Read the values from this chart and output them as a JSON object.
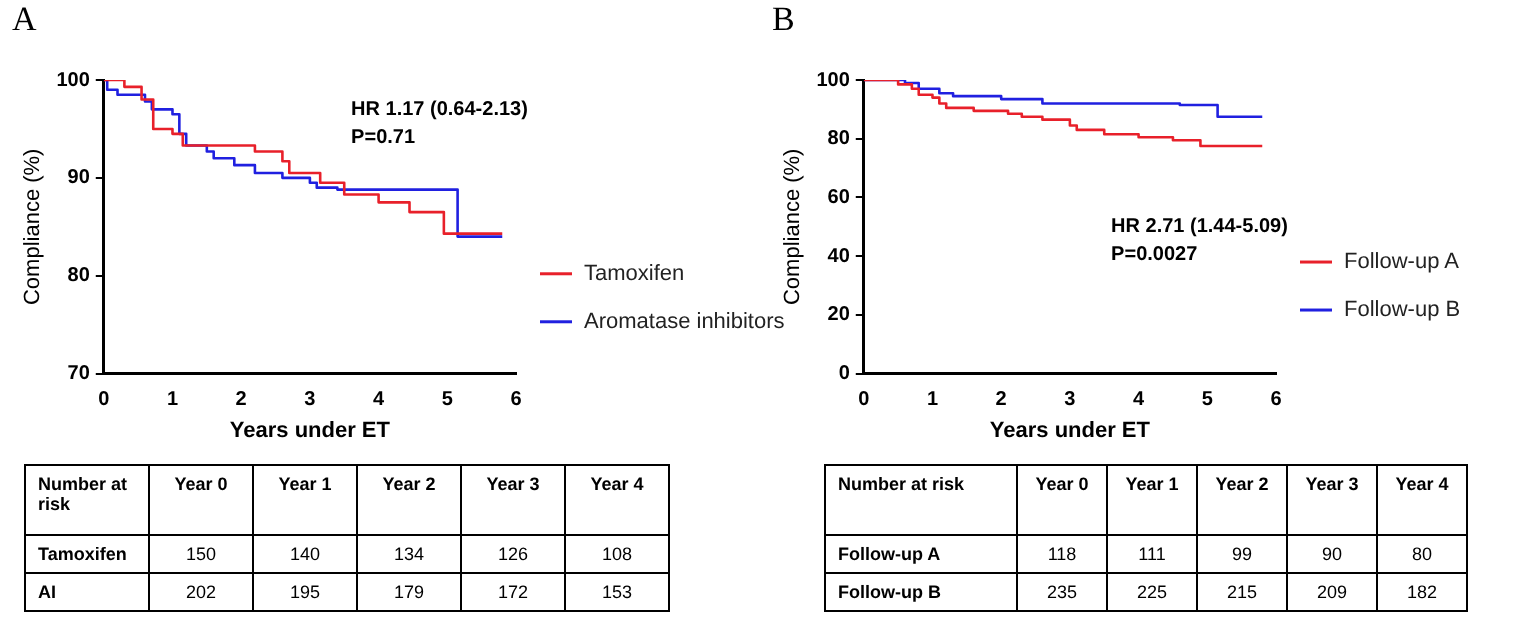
{
  "chart_data": [
    {
      "type": "step",
      "title": "A",
      "xlabel": "Years under ET",
      "ylabel": "Compliance (%)",
      "xlim": [
        0,
        6
      ],
      "xticks": [
        0,
        1,
        2,
        3,
        4,
        5,
        6
      ],
      "ylim": [
        70,
        100
      ],
      "yticks": [
        70,
        80,
        90,
        100
      ],
      "grid": false,
      "legend": "right",
      "marker": "none",
      "line_style": "solid",
      "annotations": [
        "HR 1.17 (0.64-2.13)",
        "P=0.71"
      ],
      "series": [
        {
          "name": "Tamoxifen",
          "color": "#e8202a",
          "x": [
            0,
            0.3,
            0.55,
            0.72,
            1.0,
            1.15,
            2.2,
            2.6,
            2.7,
            3.15,
            3.5,
            4.0,
            4.45,
            4.95,
            5.8
          ],
          "values": [
            100,
            99.3,
            98,
            95,
            94.5,
            93.3,
            92.7,
            91.7,
            90.5,
            89.5,
            88.3,
            87.5,
            86.5,
            84.3,
            84.3
          ]
        },
        {
          "name": "Aromatase inhibitors",
          "color": "#2020e0",
          "x": [
            0,
            0.05,
            0.2,
            0.6,
            0.7,
            1.0,
            1.1,
            1.2,
            1.5,
            1.6,
            1.9,
            2.2,
            2.6,
            3.0,
            3.1,
            3.4,
            5.15,
            5.8
          ],
          "values": [
            100,
            99,
            98.5,
            97.8,
            97,
            96.5,
            94.5,
            93.3,
            92.7,
            92,
            91.3,
            90.5,
            90,
            89.5,
            89,
            88.8,
            84,
            84
          ]
        }
      ]
    },
    {
      "type": "other",
      "data_labels": true,
      "legend_title": "Number at risk",
      "categories": [
        "Year 0",
        "Year 1",
        "Year 2",
        "Year 3",
        "Year 4"
      ],
      "series": [
        {
          "name": "Tamoxifen",
          "values": [
            150,
            140,
            134,
            126,
            108
          ]
        },
        {
          "name": "AI",
          "values": [
            202,
            195,
            179,
            172,
            153
          ]
        }
      ]
    },
    {
      "type": "step",
      "title": "B",
      "xlabel": "Years under ET",
      "ylabel": "Compliance (%)",
      "xlim": [
        0,
        6
      ],
      "xticks": [
        0,
        1,
        2,
        3,
        4,
        5,
        6
      ],
      "ylim": [
        0,
        100
      ],
      "yticks": [
        0,
        20,
        40,
        60,
        80,
        100
      ],
      "grid": false,
      "legend": "right",
      "marker": "none",
      "line_style": "solid",
      "annotations": [
        "HR 2.71 (1.44-5.09)",
        "P=0.0027"
      ],
      "series": [
        {
          "name": "Follow-up A",
          "color": "#e8202a",
          "x": [
            0,
            0.5,
            0.7,
            0.8,
            1.0,
            1.1,
            1.2,
            1.6,
            2.1,
            2.3,
            2.6,
            3.0,
            3.1,
            3.5,
            4.0,
            4.5,
            4.9,
            5.8
          ],
          "values": [
            100,
            98.5,
            97,
            95,
            94,
            92,
            90.5,
            89.5,
            88.5,
            87.5,
            86.5,
            84.5,
            83,
            81.5,
            80.5,
            79.5,
            77.5,
            77.5
          ]
        },
        {
          "name": "Follow-up B",
          "color": "#2020e0",
          "x": [
            0,
            0.6,
            0.8,
            1.1,
            1.3,
            2.0,
            2.6,
            4.6,
            5.15,
            5.8
          ],
          "values": [
            100,
            99,
            97,
            95.5,
            94.5,
            93.5,
            92,
            91.5,
            87.5,
            87.5
          ]
        }
      ]
    },
    {
      "type": "other",
      "data_labels": true,
      "legend_title": "Number at risk",
      "categories": [
        "Year 0",
        "Year 1",
        "Year 2",
        "Year 3",
        "Year 4"
      ],
      "series": [
        {
          "name": "Follow-up A",
          "values": [
            118,
            111,
            99,
            90,
            80
          ]
        },
        {
          "name": "Follow-up B",
          "values": [
            235,
            225,
            215,
            209,
            182
          ]
        }
      ]
    }
  ]
}
